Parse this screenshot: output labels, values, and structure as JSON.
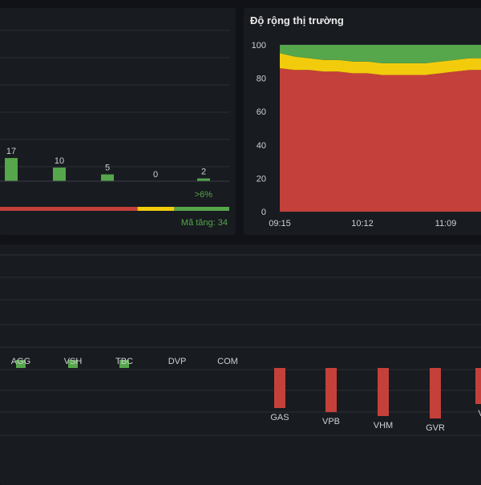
{
  "left_panel": {
    "label_gt6": ">6%",
    "footer": "Mã tăng: 34"
  },
  "right_panel": {
    "title": "Độ rộng thị trường"
  },
  "colors": {
    "green": "#56a64b",
    "yellow": "#f2cc0c",
    "red": "#c4403a",
    "grid": "#2c3035",
    "axis_text": "#cfd0d2",
    "panel": "#181b1f",
    "bg": "#111217"
  },
  "chart_data": [
    {
      "type": "bar",
      "categories": [
        "",
        "",
        "",
        "",
        ""
      ],
      "values": [
        17,
        10,
        5,
        0,
        2
      ],
      "data_labels": [
        "17",
        "10",
        "5",
        "0",
        "2"
      ],
      "distribution_bar": {
        "red": 0.6,
        "yellow": 0.16,
        "green": 0.24
      }
    },
    {
      "type": "area",
      "title": "Độ rộng thị trường",
      "x_ticks": [
        "09:15",
        "10:12",
        "11:09"
      ],
      "y_ticks": [
        "0",
        "20",
        "40",
        "60",
        "80",
        "100"
      ],
      "ylim": [
        0,
        100
      ],
      "stacked": true,
      "series": [
        {
          "color": "red",
          "values": [
            86,
            85,
            85,
            84,
            84,
            83,
            83,
            82,
            82,
            82,
            82,
            83,
            84,
            85,
            85
          ]
        },
        {
          "color": "yellow",
          "values": [
            9,
            8,
            7,
            7,
            7,
            7,
            7,
            7,
            7,
            7,
            7,
            7,
            7,
            7,
            7
          ]
        },
        {
          "color": "green",
          "values": [
            5,
            7,
            8,
            9,
            9,
            10,
            10,
            11,
            11,
            11,
            11,
            10,
            9,
            8,
            8
          ]
        }
      ]
    },
    {
      "type": "bar",
      "categories": [
        "AGG",
        "VSH",
        "TBC",
        "DVP",
        "COM",
        "GAS",
        "VPB",
        "VHM",
        "GVR",
        "V"
      ],
      "values": [
        0.1,
        0.1,
        0.1,
        0,
        0,
        -0.5,
        -0.55,
        -0.6,
        -0.63,
        -0.45
      ],
      "ylim": [
        -0.7,
        0.6
      ]
    }
  ]
}
